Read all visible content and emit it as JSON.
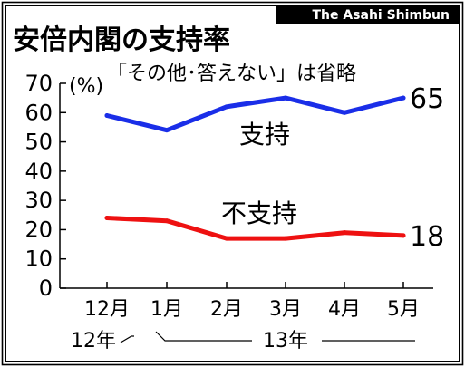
{
  "header": {
    "source": "The Asahi Shimbun",
    "title": "安倍内閣の支持率"
  },
  "notes": {
    "unit": "(%)",
    "exclusion": "「その他･答えない」は省略"
  },
  "chart_data": {
    "type": "line",
    "title": "安倍内閣の支持率",
    "xlabel": "",
    "ylabel": "(%)",
    "ylim": [
      0,
      70
    ],
    "yticks": [
      "0",
      "10",
      "20",
      "30",
      "40",
      "50",
      "60",
      "70"
    ],
    "categories": [
      "12月",
      "1月",
      "2月",
      "3月",
      "4月",
      "5月"
    ],
    "year_labels": {
      "first": "12年",
      "second": "13年"
    },
    "grid": false,
    "series": [
      {
        "name": "支持",
        "color": "#1a2ee8",
        "values": [
          59,
          54,
          62,
          65,
          60,
          65
        ],
        "end_label": "65"
      },
      {
        "name": "不支持",
        "color": "#ee1111",
        "values": [
          24,
          23,
          17,
          17,
          19,
          18
        ],
        "end_label": "18"
      }
    ]
  }
}
